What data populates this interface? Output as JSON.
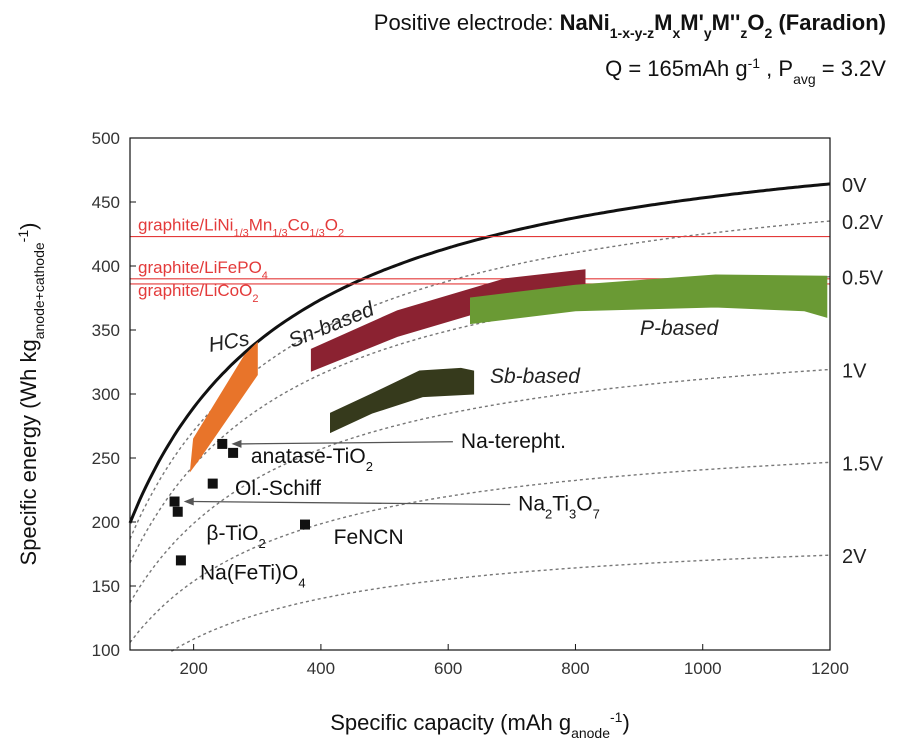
{
  "header": {
    "line1_prefix": "Positive electrode: ",
    "line1_formula_parts": [
      {
        "t": "NaNi",
        "s": "base"
      },
      {
        "t": "1-x-y-z",
        "s": "sub"
      },
      {
        "t": "M",
        "s": "base"
      },
      {
        "t": "x",
        "s": "sub"
      },
      {
        "t": "M'",
        "s": "base"
      },
      {
        "t": "y",
        "s": "sub"
      },
      {
        "t": "M''",
        "s": "base"
      },
      {
        "t": "z",
        "s": "sub"
      },
      {
        "t": "O",
        "s": "base"
      },
      {
        "t": "2",
        "s": "sub"
      },
      {
        "t": " (Faradion)",
        "s": "base"
      }
    ],
    "line2_parts": [
      {
        "t": "Q = 165mAh g",
        "s": "base"
      },
      {
        "t": "-1",
        "s": "sup"
      },
      {
        "t": " , P",
        "s": "base"
      },
      {
        "t": "avg",
        "s": "sub"
      },
      {
        "t": " = 3.2V",
        "s": "base"
      }
    ]
  },
  "chart_data": {
    "type": "scatter",
    "xlabel_parts": [
      {
        "t": "Specific capacity (mAh g",
        "s": "base"
      },
      {
        "t": "anode",
        "s": "sub"
      },
      {
        "t": "-1",
        "s": "sup"
      },
      {
        "t": ")",
        "s": "base"
      }
    ],
    "ylabel_parts": [
      {
        "t": "Specific energy (Wh kg",
        "s": "base"
      },
      {
        "t": "anode+cathode",
        "s": "sub"
      },
      {
        "t": "-1",
        "s": "sup"
      },
      {
        "t": ")",
        "s": "base"
      }
    ],
    "xlim": [
      100,
      1200
    ],
    "ylim": [
      100,
      500
    ],
    "xticks": [
      200,
      400,
      600,
      800,
      1000,
      1200
    ],
    "yticks": [
      100,
      150,
      200,
      250,
      300,
      350,
      400,
      450,
      500
    ],
    "voltage_curves": {
      "cathode_capacity": 165,
      "cathode_voltage": 3.2,
      "anode_voltages": [
        0,
        0.2,
        0.5,
        1,
        1.5,
        2
      ],
      "labels": [
        "0V",
        "0.2V",
        "0.5V",
        "1V",
        "1.5V",
        "2V"
      ]
    },
    "reference_lines": [
      {
        "y": 423,
        "label_parts": [
          {
            "t": "graphite/LiNi",
            "s": "base"
          },
          {
            "t": "1/3",
            "s": "sub"
          },
          {
            "t": "Mn",
            "s": "base"
          },
          {
            "t": "1/3",
            "s": "sub"
          },
          {
            "t": "Co",
            "s": "base"
          },
          {
            "t": "1/3",
            "s": "sub"
          },
          {
            "t": "O",
            "s": "base"
          },
          {
            "t": "2",
            "s": "sub"
          }
        ]
      },
      {
        "y": 390,
        "label_parts": [
          {
            "t": "graphite/LiFePO",
            "s": "base"
          },
          {
            "t": "4",
            "s": "sub"
          }
        ]
      },
      {
        "y": 386,
        "label_parts": [
          {
            "t": "graphite/LiCoO",
            "s": "base"
          },
          {
            "t": "2",
            "s": "sub"
          }
        ]
      }
    ],
    "regions": [
      {
        "name": "HCs",
        "color": "#e8742a",
        "label": "HCs",
        "polygon": [
          [
            200,
            265
          ],
          [
            280,
            330
          ],
          [
            300,
            340
          ],
          [
            300,
            315
          ],
          [
            210,
            250
          ],
          [
            195,
            240
          ]
        ]
      },
      {
        "name": "Sn-based",
        "color": "#8b2231",
        "label": "Sn-based",
        "polygon": [
          [
            385,
            335
          ],
          [
            520,
            365
          ],
          [
            690,
            390
          ],
          [
            815,
            397
          ],
          [
            815,
            380
          ],
          [
            690,
            370
          ],
          [
            520,
            345
          ],
          [
            385,
            318
          ]
        ]
      },
      {
        "name": "P-based",
        "color": "#6a9a34",
        "label": "P-based",
        "polygon": [
          [
            635,
            375
          ],
          [
            800,
            385
          ],
          [
            1020,
            393
          ],
          [
            1195,
            392
          ],
          [
            1195,
            360
          ],
          [
            1160,
            365
          ],
          [
            1020,
            368
          ],
          [
            800,
            365
          ],
          [
            635,
            355
          ]
        ]
      },
      {
        "name": "Sb-based",
        "color": "#363a1c",
        "label": "Sb-based",
        "polygon": [
          [
            415,
            285
          ],
          [
            480,
            300
          ],
          [
            555,
            318
          ],
          [
            620,
            320
          ],
          [
            640,
            318
          ],
          [
            640,
            300
          ],
          [
            560,
            298
          ],
          [
            480,
            285
          ],
          [
            415,
            270
          ]
        ]
      }
    ],
    "points": [
      {
        "name": "anatase-TiO2",
        "x": 262,
        "y": 254
      },
      {
        "name": "Na-terepht.",
        "x": 245,
        "y": 261
      },
      {
        "name": "Ol.-Schiff",
        "x": 230,
        "y": 230
      },
      {
        "name": "Na2Ti3O7",
        "x": 170,
        "y": 216
      },
      {
        "name": "beta-TiO2",
        "x": 175,
        "y": 208
      },
      {
        "name": "Na(FeTi)O4",
        "x": 180,
        "y": 170
      },
      {
        "name": "FeNCN",
        "x": 375,
        "y": 198
      }
    ],
    "point_labels": [
      {
        "id": "anatase",
        "parts": [
          {
            "t": "anatase-TiO",
            "s": "base"
          },
          {
            "t": "2",
            "s": "sub"
          }
        ],
        "at": [
          290,
          246
        ]
      },
      {
        "id": "terepht",
        "parts": [
          {
            "t": "Na-terepht.",
            "s": "base"
          }
        ],
        "at": [
          620,
          258
        ],
        "arrow_to": [
          250,
          261
        ]
      },
      {
        "id": "schiff",
        "parts": [
          {
            "t": "Ol.-Schiff",
            "s": "base"
          }
        ],
        "at": [
          265,
          221
        ]
      },
      {
        "id": "na2ti3o7",
        "parts": [
          {
            "t": "Na",
            "s": "base"
          },
          {
            "t": "2",
            "s": "sub"
          },
          {
            "t": "Ti",
            "s": "base"
          },
          {
            "t": "3",
            "s": "sub"
          },
          {
            "t": "O",
            "s": "base"
          },
          {
            "t": "7",
            "s": "sub"
          }
        ],
        "at": [
          710,
          209
        ],
        "arrow_to": [
          175,
          216
        ]
      },
      {
        "id": "beta",
        "parts": [
          {
            "t": "β-TiO",
            "s": "base"
          },
          {
            "t": "2",
            "s": "sub"
          }
        ],
        "at": [
          220,
          186
        ]
      },
      {
        "id": "nafeti",
        "parts": [
          {
            "t": "Na(FeTi)O",
            "s": "base"
          },
          {
            "t": "4",
            "s": "sub"
          }
        ],
        "at": [
          210,
          155
        ]
      },
      {
        "id": "fencn",
        "parts": [
          {
            "t": "FeNCN",
            "s": "base"
          }
        ],
        "at": [
          420,
          183
        ]
      }
    ]
  }
}
